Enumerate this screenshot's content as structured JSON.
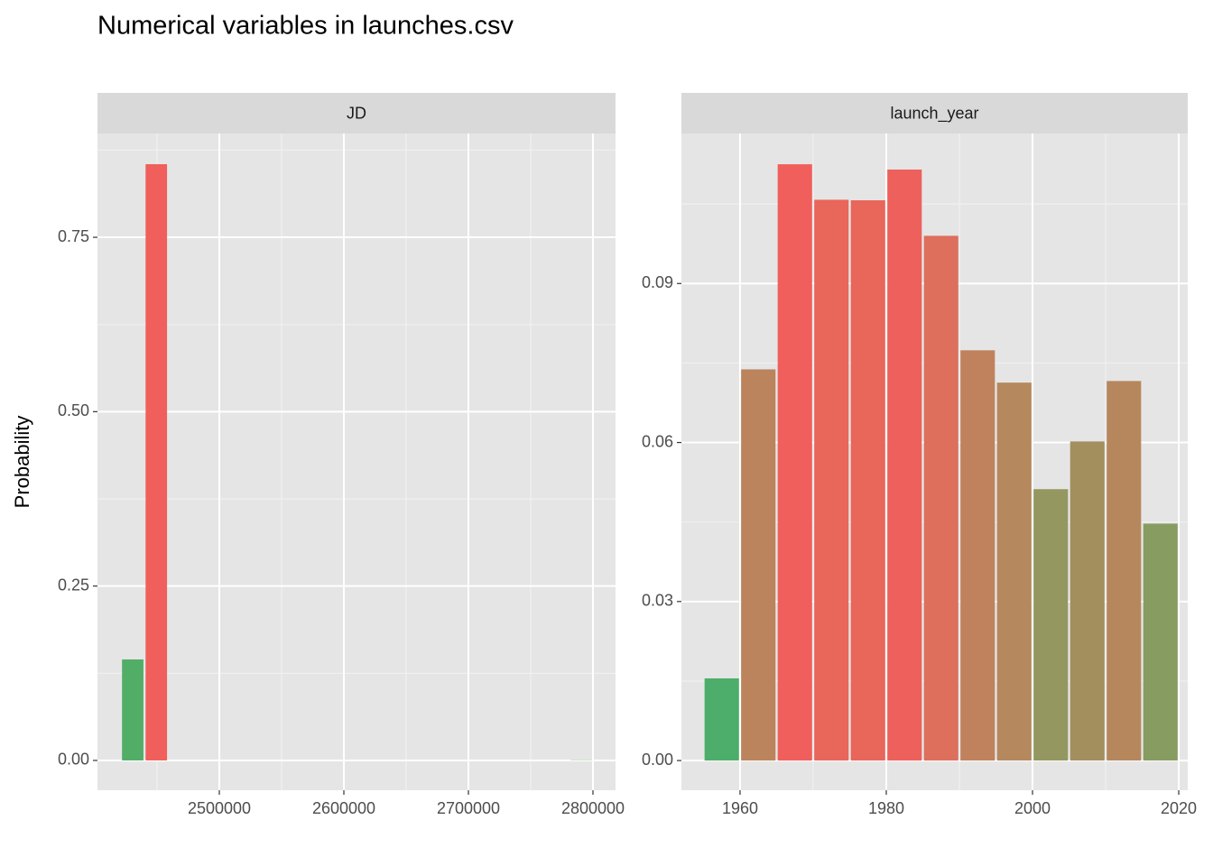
{
  "title": "Numerical variables in launches.csv",
  "ylabel": "Probability",
  "chart_data": [
    {
      "type": "histogram",
      "title": "JD",
      "bins": [
        2421000,
        2439950,
        2458900,
        2477850,
        2496800,
        2515750,
        2534700,
        2553650,
        2572600,
        2591550,
        2610500,
        2629450,
        2648400,
        2667350,
        2686300,
        2705250,
        2724200,
        2743150,
        2762100,
        2781050,
        2800000
      ],
      "values": [
        0.1448,
        0.8548,
        0,
        0,
        0,
        0,
        0,
        0,
        0,
        0,
        0,
        0,
        0,
        0,
        0,
        0,
        0,
        0,
        0,
        0.0004
      ],
      "colors": [
        "#52ae67",
        "#f05f5b",
        "#52ae67",
        "#52ae67",
        "#52ae67",
        "#52ae67",
        "#52ae67",
        "#52ae67",
        "#52ae67",
        "#52ae67",
        "#52ae67",
        "#52ae67",
        "#52ae67",
        "#52ae67",
        "#52ae67",
        "#52ae67",
        "#52ae67",
        "#52ae67",
        "#52ae67",
        "#52ae67"
      ],
      "xlim": [
        2402174,
        2818116
      ],
      "xticks": [
        2500000,
        2600000,
        2700000,
        2800000
      ],
      "x_minor_ticks": [
        2450000,
        2550000,
        2650000,
        2750000
      ],
      "ylim": [
        -0.0427,
        0.8988
      ],
      "yticks": [
        {
          "value": 0,
          "label": "0.00"
        },
        0.25,
        {
          "value": 0.5,
          "label": "0.50"
        },
        0.75
      ],
      "y_minor_ticks": [
        0.125,
        0.375,
        0.625,
        0.875
      ],
      "grid": true
    },
    {
      "type": "histogram",
      "title": "launch_year",
      "bins": [
        1955,
        1960,
        1965,
        1970,
        1975,
        1980,
        1985,
        1990,
        1995,
        2000,
        2005,
        2010,
        2015,
        2020
      ],
      "values": [
        0.0155,
        0.0738,
        0.1125,
        0.1058,
        0.1057,
        0.1115,
        0.099,
        0.0774,
        0.0713,
        0.0512,
        0.0602,
        0.0716,
        0.0447
      ],
      "colors": [
        "#4cae6a",
        "#bb845c",
        "#f05f5b",
        "#e8665a",
        "#e8665a",
        "#ee605b",
        "#dd6f5c",
        "#bf825c",
        "#b5885d",
        "#94975f",
        "#a38f5e",
        "#b6875d",
        "#879c61"
      ],
      "xlim": [
        1951.98,
        2021.23
      ],
      "xticks": [
        1960,
        1980,
        2000,
        2020
      ],
      "x_minor_ticks": [
        1970,
        1990,
        2010
      ],
      "ylim": [
        -0.0056,
        0.1183
      ],
      "yticks": [
        {
          "value": 0,
          "label": "0.00"
        },
        0.03,
        0.06,
        0.09
      ],
      "y_minor_ticks": [
        0.015,
        0.045,
        0.075,
        0.105
      ],
      "grid": true
    }
  ]
}
